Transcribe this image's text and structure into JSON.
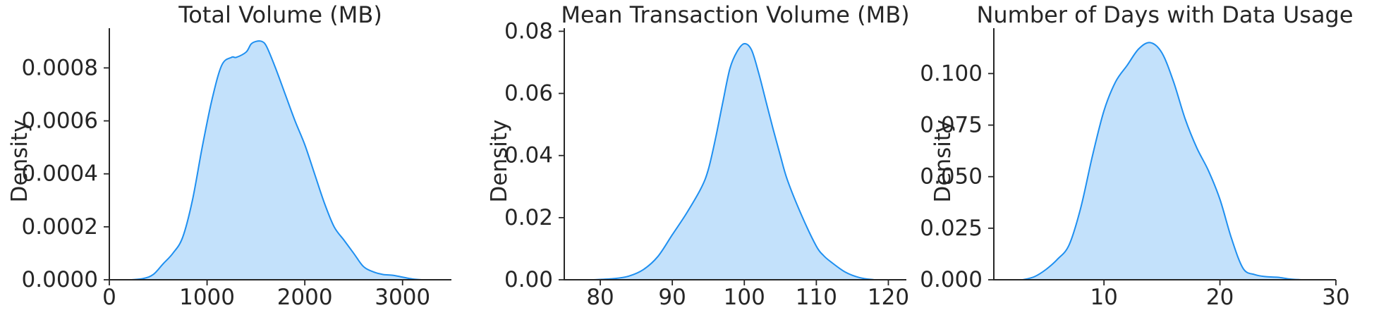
{
  "colors": {
    "fill": "#c3e1fb",
    "line": "#1e8ff0",
    "axis": "#262626"
  },
  "chart_data": [
    {
      "type": "area",
      "title": "Total Volume (MB)",
      "xlabel": "",
      "ylabel": "Density",
      "xlim": [
        0,
        3500
      ],
      "ylim": [
        0,
        0.00095
      ],
      "grid": false,
      "x_ticks": [
        0,
        1000,
        2000,
        3000
      ],
      "x_tick_labels": [
        "0",
        "1000",
        "2000",
        "3000"
      ],
      "y_ticks": [
        0,
        0.0002,
        0.0004,
        0.0006,
        0.0008
      ],
      "y_tick_labels": [
        "0.0000",
        "0.0002",
        "0.0004",
        "0.0006",
        "0.0008"
      ],
      "series": [
        {
          "x": [
            230,
            350,
            450,
            550,
            650,
            750,
            850,
            950,
            1050,
            1150,
            1250,
            1300,
            1400,
            1450,
            1500,
            1560,
            1610,
            1700,
            1800,
            1900,
            2000,
            2100,
            2200,
            2300,
            2400,
            2500,
            2600,
            2700,
            2800,
            2900,
            3000,
            3100,
            3200
          ],
          "y": [
            0,
            5e-06,
            2e-05,
            6e-05,
            0.0001,
            0.00016,
            0.0003,
            0.0005,
            0.00068,
            0.00081,
            0.00084,
            0.00084,
            0.00086,
            0.00089,
            0.0009,
            0.0009,
            0.00088,
            0.0008,
            0.0007,
            0.0006,
            0.00051,
            0.0004,
            0.00029,
            0.0002,
            0.00015,
            0.0001,
            5e-05,
            3e-05,
            2e-05,
            1.7e-05,
            1e-05,
            3e-06,
            0
          ]
        }
      ]
    },
    {
      "type": "area",
      "title": "Mean Transaction Volume (MB)",
      "xlabel": "",
      "ylabel": "Density",
      "xlim": [
        75,
        122.5
      ],
      "ylim": [
        0,
        0.081
      ],
      "grid": false,
      "x_ticks": [
        80,
        90,
        100,
        110,
        120
      ],
      "x_tick_labels": [
        "80",
        "90",
        "100",
        "110",
        "120"
      ],
      "y_ticks": [
        0,
        0.02,
        0.04,
        0.06,
        0.08
      ],
      "y_tick_labels": [
        "0.00",
        "0.02",
        "0.04",
        "0.06",
        "0.08"
      ],
      "series": [
        {
          "x": [
            79,
            82,
            84,
            86,
            88,
            90,
            92,
            94,
            95,
            96,
            97,
            98,
            99,
            100,
            101,
            102,
            103,
            104,
            105,
            106,
            108,
            110,
            111,
            112,
            114,
            116,
            118
          ],
          "y": [
            0,
            0.0004,
            0.0012,
            0.0033,
            0.0075,
            0.0145,
            0.0215,
            0.0295,
            0.0355,
            0.0455,
            0.057,
            0.068,
            0.0735,
            0.076,
            0.074,
            0.0665,
            0.0575,
            0.0485,
            0.04,
            0.032,
            0.0205,
            0.0108,
            0.0078,
            0.0058,
            0.0025,
            0.0007,
            0
          ]
        }
      ]
    },
    {
      "type": "area",
      "title": "Number of Days with Data Usage",
      "xlabel": "",
      "ylabel": "Density",
      "xlim": [
        0.5,
        30
      ],
      "ylim": [
        0,
        0.122
      ],
      "grid": false,
      "x_ticks": [
        10,
        20,
        30
      ],
      "x_tick_labels": [
        "10",
        "20",
        "30"
      ],
      "y_ticks": [
        0,
        0.025,
        0.05,
        0.075,
        0.1
      ],
      "y_tick_labels": [
        "0.000",
        "0.025",
        "0.050",
        "0.075",
        "0.100"
      ],
      "series": [
        {
          "x": [
            3,
            4,
            5,
            6,
            7,
            8,
            9,
            10,
            11,
            12,
            13,
            14,
            15,
            16,
            17,
            18,
            19,
            20,
            21,
            22,
            23,
            24,
            25,
            26,
            27
          ],
          "y": [
            0,
            0.0015,
            0.005,
            0.01,
            0.017,
            0.035,
            0.06,
            0.082,
            0.096,
            0.104,
            0.112,
            0.115,
            0.11,
            0.096,
            0.078,
            0.064,
            0.053,
            0.039,
            0.02,
            0.0055,
            0.0025,
            0.0015,
            0.0012,
            0.0004,
            0
          ]
        }
      ]
    }
  ]
}
